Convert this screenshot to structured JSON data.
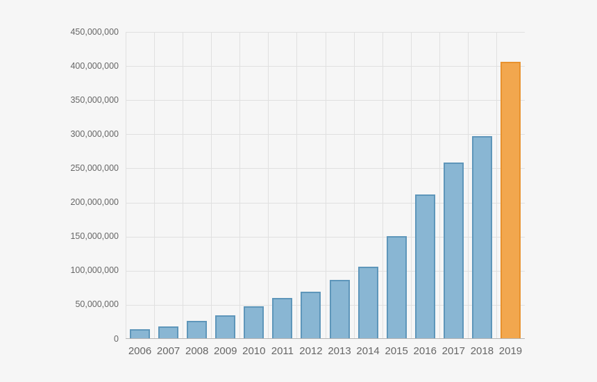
{
  "chart_data": {
    "type": "bar",
    "title": "",
    "xlabel": "",
    "ylabel": "",
    "categories": [
      "2006",
      "2007",
      "2008",
      "2009",
      "2010",
      "2011",
      "2012",
      "2013",
      "2014",
      "2015",
      "2016",
      "2017",
      "2018",
      "2019"
    ],
    "values": [
      14000000,
      18000000,
      27000000,
      35000000,
      48000000,
      60000000,
      69500000,
      86500000,
      105500000,
      151000000,
      212000000,
      259000000,
      297000000,
      406000000
    ],
    "highlight_category": "2019",
    "ylim": [
      0,
      450000000
    ],
    "y_tick_step": 50000000,
    "y_ticks": [
      {
        "value": 0,
        "label": "0"
      },
      {
        "value": 50000000,
        "label": "50,000,000"
      },
      {
        "value": 100000000,
        "label": "100,000,000"
      },
      {
        "value": 150000000,
        "label": "150,000,000"
      },
      {
        "value": 200000000,
        "label": "200,000,000"
      },
      {
        "value": 250000000,
        "label": "250,000,000"
      },
      {
        "value": 300000000,
        "label": "300,000,000"
      },
      {
        "value": 350000000,
        "label": "350,000,000"
      },
      {
        "value": 400000000,
        "label": "400,000,000"
      },
      {
        "value": 450000000,
        "label": "450,000,000"
      }
    ],
    "grid": true,
    "legend": "none",
    "colors": {
      "background": "#f6f6f6",
      "gridline": "#e0e0e0",
      "axis_line": "#b3b3b3",
      "label_color": "#666666",
      "bar_fill": "#89b6d3",
      "bar_border": "#5e96ba",
      "highlight_fill": "#f2a74e",
      "highlight_border": "#e8922e"
    }
  }
}
